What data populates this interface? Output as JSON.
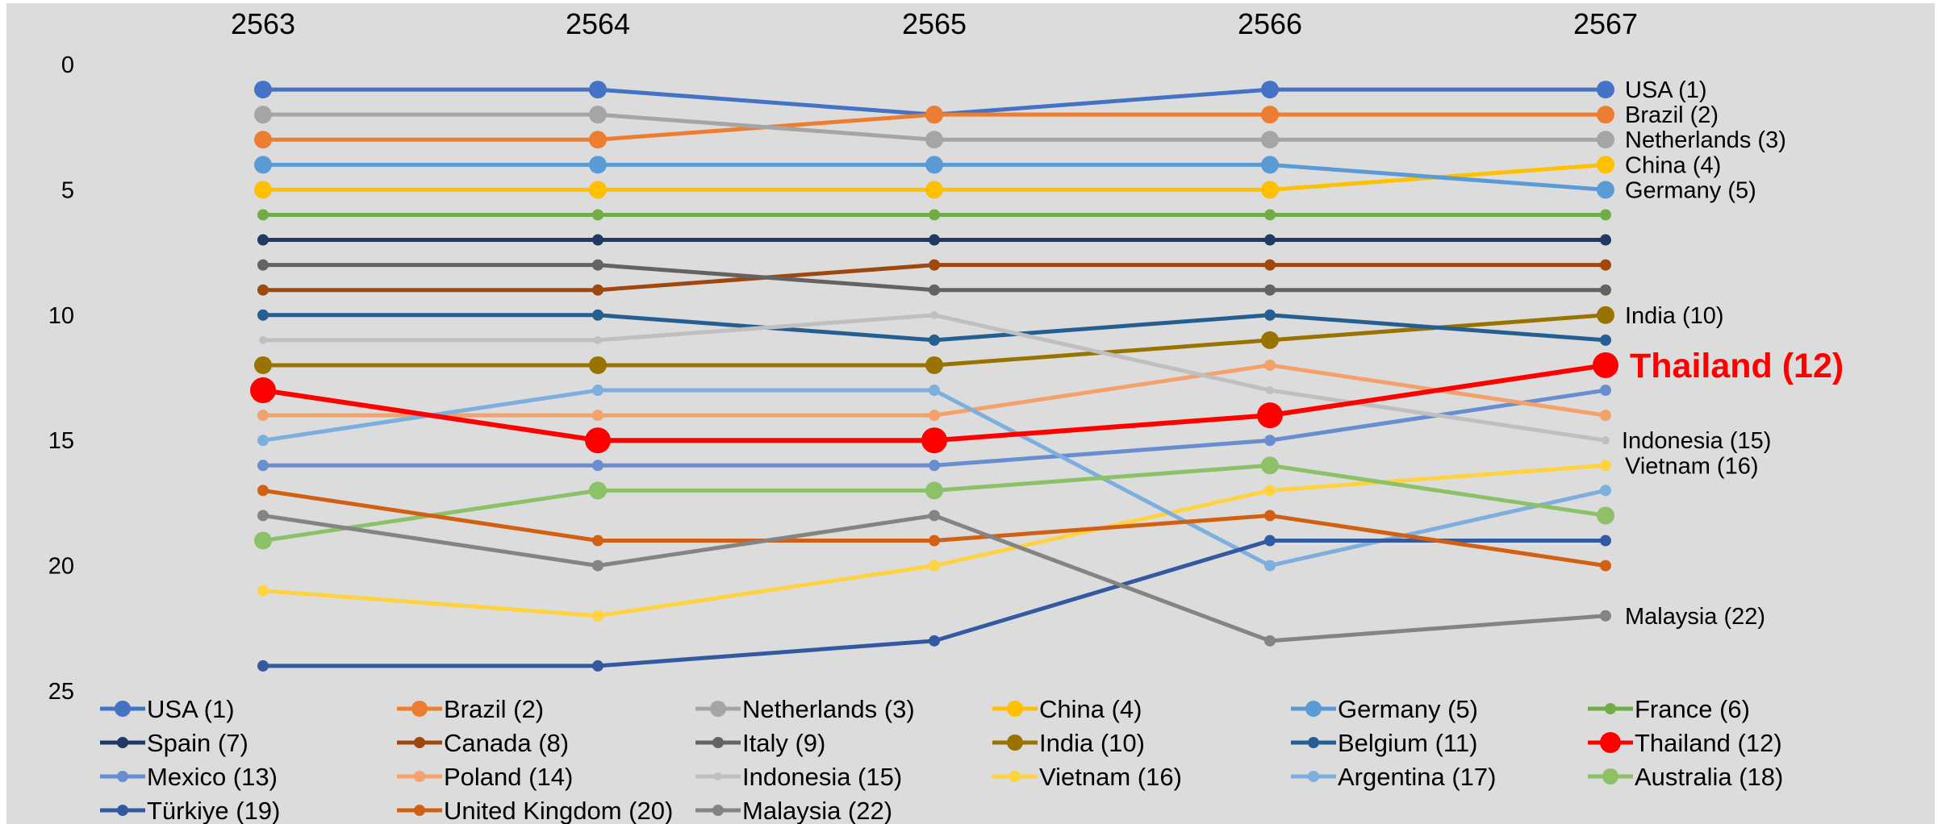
{
  "chart_data": {
    "type": "line",
    "title": "",
    "xlabel": "",
    "ylabel": "",
    "x": [
      "2563",
      "2564",
      "2565",
      "2566",
      "2567"
    ],
    "ylim": [
      0,
      25
    ],
    "y_inverted": true,
    "y_ticks": [
      "0",
      "5",
      "10",
      "15",
      "20",
      "25"
    ],
    "grid": false,
    "legend_position": "bottom",
    "background_color": "#dcdcdc",
    "series": [
      {
        "name": "USA (1)",
        "color": "#4472c4",
        "values": [
          1,
          1,
          2,
          1,
          1
        ],
        "end_label": "USA (1)",
        "marker": "large"
      },
      {
        "name": "Brazil (2)",
        "color": "#ed7d31",
        "values": [
          3,
          3,
          2,
          2,
          2
        ],
        "end_label": "Brazil (2)",
        "marker": "large"
      },
      {
        "name": "Netherlands (3)",
        "color": "#a5a5a5",
        "values": [
          2,
          2,
          3,
          3,
          3
        ],
        "end_label": "Netherlands (3)",
        "marker": "large"
      },
      {
        "name": "China (4)",
        "color": "#ffc000",
        "values": [
          5,
          5,
          5,
          5,
          4
        ],
        "end_label": "China (4)",
        "marker": "large"
      },
      {
        "name": "Germany (5)",
        "color": "#5b9bd5",
        "values": [
          4,
          4,
          4,
          4,
          5
        ],
        "end_label": "Germany (5)",
        "marker": "large"
      },
      {
        "name": "France (6)",
        "color": "#70ad47",
        "values": [
          6,
          6,
          6,
          6,
          6
        ],
        "end_label": "",
        "marker": "small"
      },
      {
        "name": "Spain (7)",
        "color": "#1f3864",
        "values": [
          7,
          7,
          7,
          7,
          7
        ],
        "end_label": "",
        "marker": "small"
      },
      {
        "name": "Canada (8)",
        "color": "#9e480e",
        "values": [
          9,
          9,
          8,
          8,
          8
        ],
        "end_label": "",
        "marker": "small"
      },
      {
        "name": "Italy (9)",
        "color": "#636363",
        "values": [
          8,
          8,
          9,
          9,
          9
        ],
        "end_label": "",
        "marker": "small"
      },
      {
        "name": "India (10)",
        "color": "#997300",
        "values": [
          12,
          12,
          12,
          11,
          10
        ],
        "end_label": "India (10)",
        "marker": "large"
      },
      {
        "name": "Belgium (11)",
        "color": "#255e91",
        "values": [
          10,
          10,
          11,
          10,
          11
        ],
        "end_label": "",
        "marker": "small"
      },
      {
        "name": "Thailand (12)",
        "color": "#ff0000",
        "values": [
          13,
          15,
          15,
          14,
          12
        ],
        "end_label": "Thailand (12)",
        "marker": "xlarge",
        "highlight": true
      },
      {
        "name": "Mexico (13)",
        "color": "#698ed0",
        "values": [
          16,
          16,
          16,
          15,
          13
        ],
        "end_label": "",
        "marker": "small"
      },
      {
        "name": "Poland (14)",
        "color": "#f4a16b",
        "values": [
          14,
          14,
          14,
          12,
          14
        ],
        "end_label": "",
        "marker": "small"
      },
      {
        "name": "Indonesia (15)",
        "color": "#bfbfbf",
        "values": [
          11,
          11,
          10,
          13,
          15
        ],
        "end_label": "Indonesia (15)",
        "marker": "tiny"
      },
      {
        "name": "Vietnam (16)",
        "color": "#ffd23f",
        "values": [
          21,
          22,
          20,
          17,
          16
        ],
        "end_label": "Vietnam (16)",
        "marker": "small"
      },
      {
        "name": "Argentina (17)",
        "color": "#7cafdd",
        "values": [
          15,
          13,
          13,
          20,
          17
        ],
        "end_label": "",
        "marker": "small"
      },
      {
        "name": "Australia (18)",
        "color": "#8cc168",
        "values": [
          19,
          17,
          17,
          16,
          18
        ],
        "end_label": "",
        "marker": "large"
      },
      {
        "name": "Türkiye (19)",
        "color": "#335aa1",
        "values": [
          24,
          24,
          23,
          19,
          19
        ],
        "end_label": "",
        "marker": "small"
      },
      {
        "name": "United Kingdom (20)",
        "color": "#d26012",
        "values": [
          17,
          19,
          19,
          18,
          20
        ],
        "end_label": "",
        "marker": "small"
      },
      {
        "name": "Malaysia (22)",
        "color": "#848484",
        "values": [
          18,
          20,
          18,
          23,
          22
        ],
        "end_label": "Malaysia (22)",
        "marker": "small"
      }
    ]
  }
}
